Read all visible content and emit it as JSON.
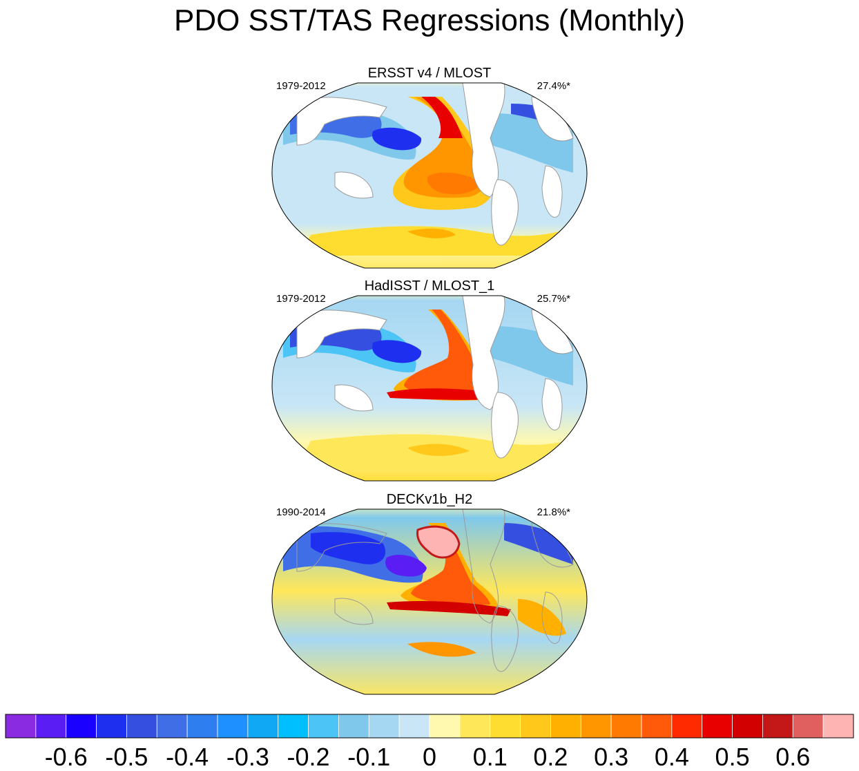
{
  "title": "PDO SST/TAS Regressions (Monthly)",
  "panels": [
    {
      "name": "ERSST v4 / MLOST",
      "years": "1979-2012",
      "pct": "27.4%*"
    },
    {
      "name": "HadISST / MLOST_1",
      "years": "1979-2012",
      "pct": "25.7%*"
    },
    {
      "name": "DECKv1b_H2",
      "years": "1990-2014",
      "pct": "21.8%*"
    }
  ],
  "colorbar": {
    "colors": [
      "#8a2be2",
      "#5a1ef5",
      "#1a00ff",
      "#1f2ff0",
      "#3550e0",
      "#3f6ee6",
      "#2f7eef",
      "#1e90ff",
      "#10a8f5",
      "#00bfff",
      "#4cc4f5",
      "#7fc8ec",
      "#a6d7f2",
      "#c8e6f6",
      "#fff9b0",
      "#ffe75a",
      "#ffdc30",
      "#ffc81a",
      "#ffb000",
      "#ff9600",
      "#ff7a00",
      "#ff5a0a",
      "#ff2a00",
      "#e80000",
      "#d20000",
      "#c41818",
      "#e06060",
      "#ffb4b4"
    ],
    "ticks": [
      "-0.6",
      "-0.5",
      "-0.4",
      "-0.3",
      "-0.2",
      "-0.1",
      "0",
      "0.1",
      "0.2",
      "0.3",
      "0.4",
      "0.5",
      "0.6"
    ]
  }
}
